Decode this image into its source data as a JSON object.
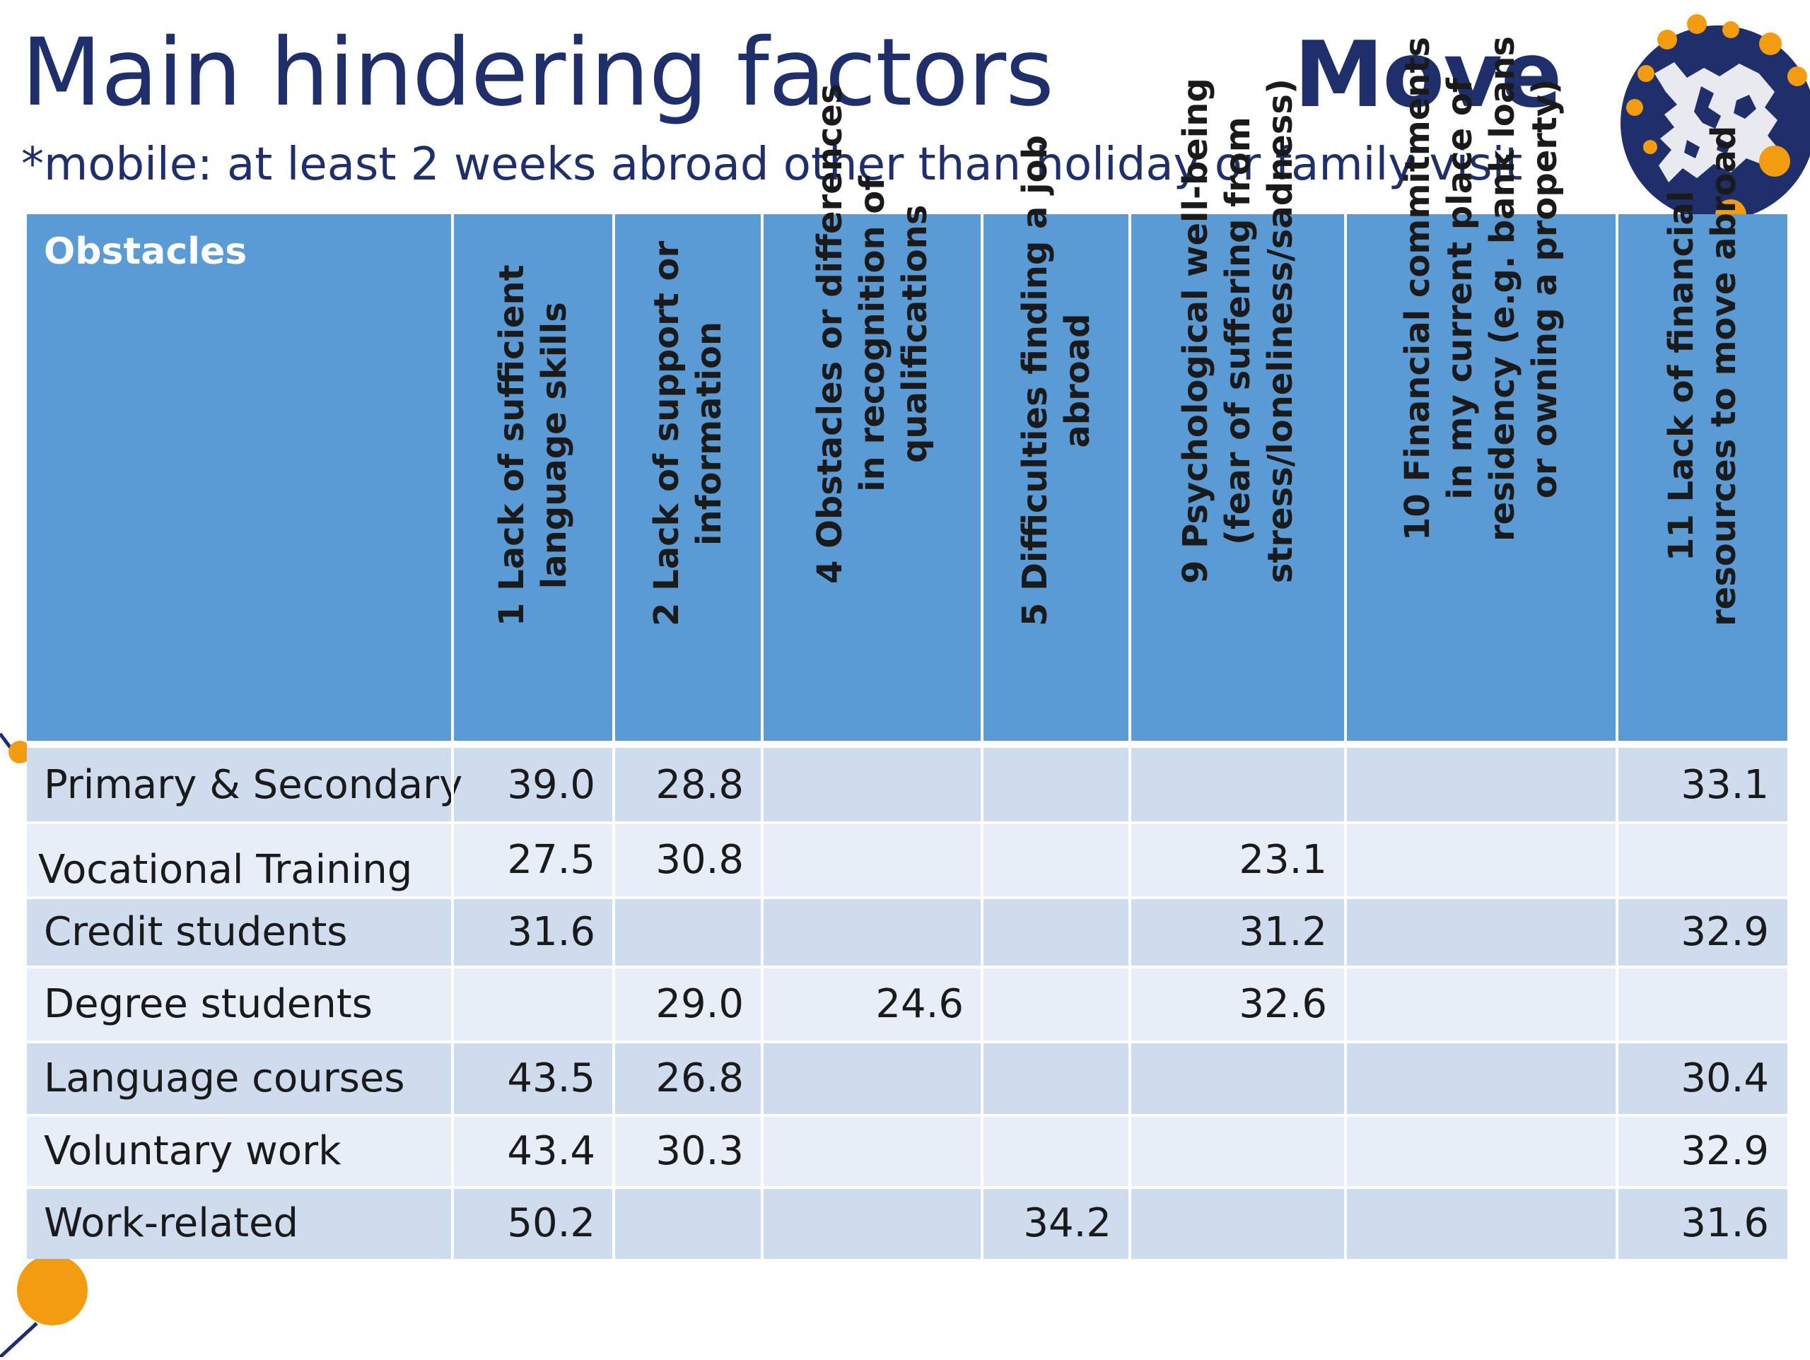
{
  "title": "Main hindering factors",
  "subtitle": "*mobile: at least 2 weeks abroad other than holiday or family visit",
  "logo": {
    "text": "Move",
    "icon": "europe-globe-icon",
    "colors": {
      "text": "#1f2f6b",
      "globe": "#1f2f6b",
      "dots": "#f39c12"
    }
  },
  "table": {
    "header_label": "Obstacles",
    "columns": [
      "1 Lack of sufficient\nlanguage skills",
      "2 Lack of support or\ninformation",
      "4 Obstacles or differences\nin recognition of\nqualifications",
      "5 Difficulties finding a job\nabroad",
      "9 Psychological well-being\n(fear of suffering from\nstress/loneliness/sadness)",
      "10 Financial commitments\nin my current place of\nresidency (e.g. bank loans\nor owning a property)",
      "11 Lack of financial\nresources to move abroad"
    ],
    "rows": [
      {
        "label": "Primary & Secondary",
        "values": [
          "39.0",
          "28.8",
          "",
          "",
          "",
          "",
          "33.1"
        ]
      },
      {
        "label": "Vocational Training",
        "values": [
          "27.5",
          "30.8",
          "",
          "",
          "23.1",
          "",
          ""
        ]
      },
      {
        "label": "Credit students",
        "values": [
          "31.6",
          "",
          "",
          "",
          "31.2",
          "",
          "32.9"
        ]
      },
      {
        "label": "Degree students",
        "values": [
          "",
          "29.0",
          "24.6",
          "",
          "32.6",
          "",
          ""
        ]
      },
      {
        "label": "Language courses",
        "values": [
          "43.5",
          "26.8",
          "",
          "",
          "",
          "",
          "30.4"
        ]
      },
      {
        "label": "Voluntary work",
        "values": [
          "43.4",
          "30.3",
          "",
          "",
          "",
          "",
          "32.9"
        ]
      },
      {
        "label": "Work-related",
        "values": [
          "50.2",
          "",
          "",
          "34.2",
          "",
          "",
          "31.6"
        ]
      }
    ]
  },
  "colors": {
    "header_bg": "#5b9bd5",
    "row_dark": "#cfdcee",
    "row_light": "#e8eef8",
    "title": "#1f2f6b",
    "accent": "#f39c12"
  }
}
